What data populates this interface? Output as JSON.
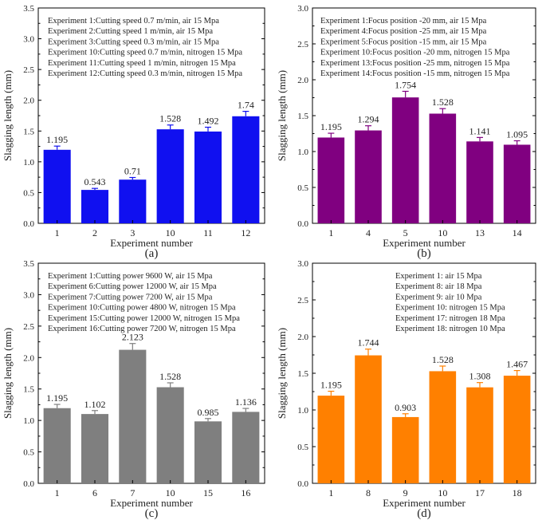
{
  "chart_data": [
    {
      "type": "bar",
      "panel_label": "(a)",
      "color": "#1010f0",
      "categories": [
        "1",
        "2",
        "3",
        "10",
        "11",
        "12"
      ],
      "values": [
        1.195,
        0.543,
        0.71,
        1.528,
        1.492,
        1.74
      ],
      "value_labels": [
        "1.195",
        "0.543",
        "0.71",
        "1.528",
        "1.492",
        "1.74"
      ],
      "errors": [
        0.06,
        0.025,
        0.035,
        0.07,
        0.07,
        0.08
      ],
      "xlabel": "Experiment number",
      "ylabel": "Slagging length (mm)",
      "ylim": [
        0,
        3.5
      ],
      "yticks": [
        "0.0",
        "0.5",
        "1.0",
        "1.5",
        "2.0",
        "2.5",
        "3.0",
        "3.5"
      ],
      "legend_placement": "top-left",
      "annotations": [
        "Experiment 1:Cutting speed 0.7 m/min, air 15 Mpa",
        "Experiment 2:Cutting speed 1 m/min, air 15 Mpa",
        "Experiment 3:Cutting speed 0.3 m/min, air 15 Mpa",
        "Experiment 10:Cutting speed 0.7 m/min, nitrogen 15 Mpa",
        "Experiment 11:Cutting speed 1 m/min, nitrogen 15 Mpa",
        "Experiment 12:Cutting speed 0.3 m/min, nitrogen 15 Mpa"
      ]
    },
    {
      "type": "bar",
      "panel_label": "(b)",
      "color": "#800080",
      "categories": [
        "1",
        "4",
        "5",
        "10",
        "13",
        "14"
      ],
      "values": [
        1.195,
        1.294,
        1.754,
        1.528,
        1.141,
        1.095
      ],
      "value_labels": [
        "1.195",
        "1.294",
        "1.754",
        "1.528",
        "1.141",
        "1.095"
      ],
      "errors": [
        0.06,
        0.065,
        0.085,
        0.07,
        0.055,
        0.055
      ],
      "xlabel": "Experiment number",
      "ylabel": "Slagging length (mm)",
      "ylim": [
        0,
        3.0
      ],
      "yticks": [
        "0.0",
        "0.5",
        "1.0",
        "1.5",
        "2.0",
        "2.5",
        "3.0"
      ],
      "legend_placement": "top-left",
      "annotations": [
        "Experiment 1:Focus position -20 mm, air 15 Mpa",
        "Experiment 4:Focus position -25 mm, air 15 Mpa",
        "Experiment 5:Focus position -15 mm, air 15 Mpa",
        "Experiment 10:Focus position -20 mm, nitrogen 15 Mpa",
        "Experiment 13:Focus position -25 mm, nitrogen 15 Mpa",
        "Experiment 14:Focus position -15 mm, nitrogen 15 Mpa"
      ]
    },
    {
      "type": "bar",
      "panel_label": "(c)",
      "color": "#7f7f7f",
      "categories": [
        "1",
        "6",
        "7",
        "10",
        "15",
        "16"
      ],
      "values": [
        1.195,
        1.102,
        2.123,
        1.528,
        0.985,
        1.136
      ],
      "value_labels": [
        "1.195",
        "1.102",
        "2.123",
        "1.528",
        "0.985",
        "1.136"
      ],
      "errors": [
        0.06,
        0.055,
        0.1,
        0.07,
        0.045,
        0.055
      ],
      "xlabel": "Experiment number",
      "ylabel": "Slagging length (mm)",
      "ylim": [
        0,
        3.5
      ],
      "yticks": [
        "0.0",
        "0.5",
        "1.0",
        "1.5",
        "2.0",
        "2.5",
        "3.0",
        "3.5"
      ],
      "legend_placement": "top-left",
      "annotations": [
        "Experiment 1:Cutting power 9600 W, air 15 Mpa",
        "Experiment 6:Cutting power 12000 W, air 15 Mpa",
        "Experiment 7:Cutting power 7200 W, air 15 Mpa",
        "Experiment 10:Cutting power 4800 W, nitrogen 15 Mpa",
        "Experiment 15:Cutting power 12000 W, nitrogen 15 Mpa",
        "Experiment 16:Cutting power 7200 W, nitrogen 15 Mpa"
      ]
    },
    {
      "type": "bar",
      "panel_label": "(d)",
      "color": "#ff8000",
      "categories": [
        "1",
        "8",
        "9",
        "10",
        "17",
        "18"
      ],
      "values": [
        1.195,
        1.744,
        0.903,
        1.528,
        1.308,
        1.467
      ],
      "value_labels": [
        "1.195",
        "1.744",
        "0.903",
        "1.528",
        "1.308",
        "1.467"
      ],
      "errors": [
        0.06,
        0.085,
        0.045,
        0.07,
        0.065,
        0.07
      ],
      "xlabel": "Experiment number",
      "ylabel": "Slagging length (mm)",
      "ylim": [
        0,
        3.0
      ],
      "yticks": [
        "0.0",
        "0.5",
        "1.0",
        "1.5",
        "2.0",
        "2.5",
        "3.0"
      ],
      "legend_placement": "top-center",
      "annotations": [
        "Experiment 1: air 15 Mpa",
        "Experiment 8: air 18 Mpa",
        "Experiment 9: air 10 Mpa",
        "Experiment 10: nitrogen 15 Mpa",
        "Experiment 17: nitrogen 18 Mpa",
        "Experiment 18: nitrogen 10 Mpa"
      ]
    }
  ]
}
